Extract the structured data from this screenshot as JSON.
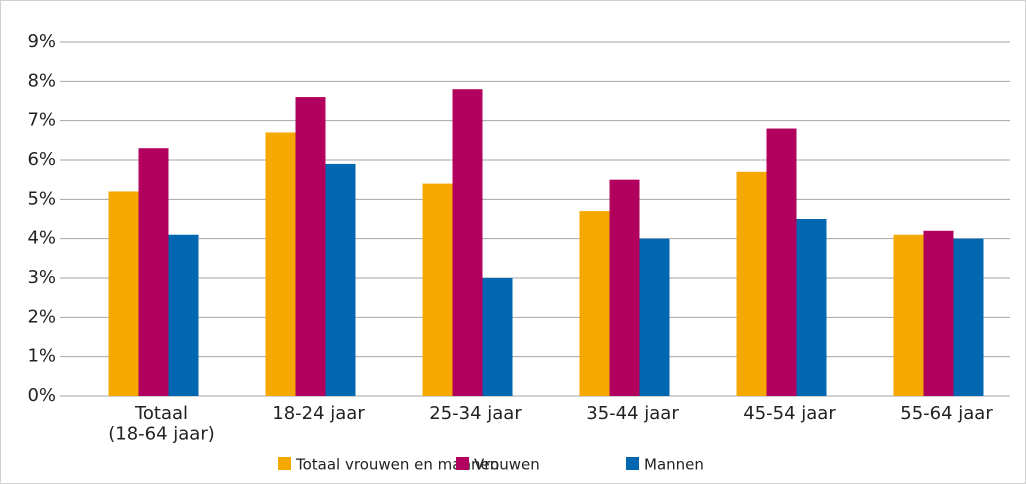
{
  "chart_data": {
    "type": "bar",
    "categories": [
      "Totaal\n(18-64 jaar)",
      "18-24 jaar",
      "25-34 jaar",
      "35-44 jaar",
      "45-54 jaar",
      "55-64 jaar"
    ],
    "series": [
      {
        "name": "Totaal vrouwen en mannen",
        "color": "#f5a800",
        "values": [
          5.2,
          6.7,
          5.4,
          4.7,
          5.7,
          4.1
        ]
      },
      {
        "name": "Vrouwen",
        "color": "#b1005d",
        "values": [
          6.3,
          7.6,
          7.8,
          5.5,
          6.8,
          4.2
        ]
      },
      {
        "name": "Mannen",
        "color": "#0067b0",
        "values": [
          4.1,
          5.9,
          3.0,
          4.0,
          4.5,
          4.0
        ]
      }
    ],
    "ylim": [
      0,
      9
    ],
    "yticks": [
      {
        "value": 0,
        "label": "0%"
      },
      {
        "value": 1,
        "label": "1%"
      },
      {
        "value": 2,
        "label": "2%"
      },
      {
        "value": 3,
        "label": "3%"
      },
      {
        "value": 4,
        "label": "4%"
      },
      {
        "value": 5,
        "label": "5%"
      },
      {
        "value": 6,
        "label": "6%"
      },
      {
        "value": 7,
        "label": "7%"
      },
      {
        "value": 8,
        "label": "8%"
      },
      {
        "value": 9,
        "label": "9%"
      }
    ],
    "grid": true,
    "legend": "bottom"
  }
}
